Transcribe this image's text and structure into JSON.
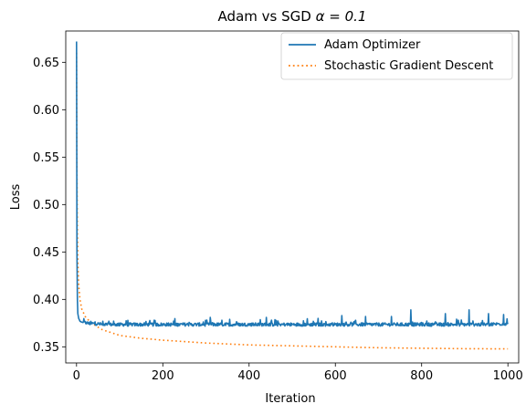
{
  "chart_data": {
    "type": "line",
    "title": "Adam vs SGD",
    "title_math": "α = 0.1",
    "xlabel": "Iteration",
    "ylabel": "Loss",
    "xlim": [
      -25,
      1025
    ],
    "ylim": [
      0.333,
      0.683
    ],
    "x_ticks": [
      0,
      200,
      400,
      600,
      800,
      1000
    ],
    "y_ticks": [
      0.35,
      0.4,
      0.45,
      0.5,
      0.55,
      0.6,
      0.65
    ],
    "grid": false,
    "legend_position": "top-right",
    "series": [
      {
        "name": "Adam Optimizer",
        "color": "#1f77b4",
        "style": "solid",
        "x": [
          0,
          1,
          2,
          3,
          5,
          8,
          12,
          20,
          30,
          45,
          60,
          80,
          100,
          150,
          200,
          250,
          300,
          350,
          400,
          450,
          500,
          550,
          600,
          650,
          700,
          750,
          800,
          850,
          900,
          950,
          1000
        ],
        "y": [
          0.672,
          0.45,
          0.4,
          0.385,
          0.38,
          0.377,
          0.376,
          0.375,
          0.374,
          0.374,
          0.373,
          0.373,
          0.373,
          0.373,
          0.373,
          0.373,
          0.373,
          0.373,
          0.373,
          0.373,
          0.373,
          0.373,
          0.373,
          0.373,
          0.373,
          0.373,
          0.373,
          0.373,
          0.373,
          0.373,
          0.374
        ],
        "noise_amplitude": 0.0035,
        "spikes": [
          [
            75,
            0.377
          ],
          [
            180,
            0.378
          ],
          [
            310,
            0.381
          ],
          [
            355,
            0.379
          ],
          [
            440,
            0.381
          ],
          [
            560,
            0.38
          ],
          [
            615,
            0.383
          ],
          [
            670,
            0.382
          ],
          [
            730,
            0.382
          ],
          [
            775,
            0.389
          ],
          [
            855,
            0.385
          ],
          [
            910,
            0.389
          ],
          [
            955,
            0.385
          ],
          [
            990,
            0.384
          ]
        ]
      },
      {
        "name": "Stochastic Gradient Descent",
        "color": "#ff7f0e",
        "style": "dotted",
        "x": [
          0,
          1,
          2,
          3,
          5,
          8,
          12,
          20,
          30,
          45,
          60,
          80,
          100,
          150,
          200,
          300,
          400,
          500,
          600,
          700,
          800,
          900,
          1000
        ],
        "y": [
          0.66,
          0.53,
          0.47,
          0.44,
          0.415,
          0.4,
          0.39,
          0.382,
          0.377,
          0.372,
          0.368,
          0.365,
          0.362,
          0.359,
          0.357,
          0.354,
          0.352,
          0.351,
          0.35,
          0.349,
          0.3485,
          0.348,
          0.3478
        ]
      }
    ]
  }
}
